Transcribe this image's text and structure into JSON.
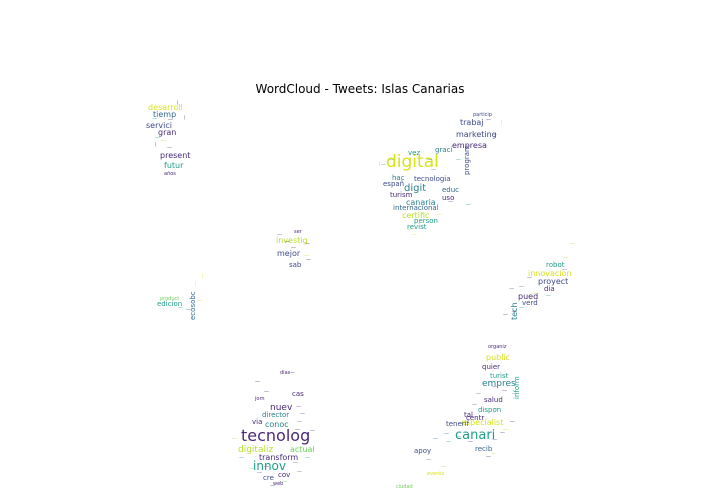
{
  "title": "WordCloud - Tweets: Islas Canarias",
  "palette": {
    "purple": "#482878",
    "indigo": "#3e4a89",
    "blue": "#31688e",
    "teal": "#26828e",
    "green": "#1f9e89",
    "lime": "#6ece58",
    "yellow": "#b5de2b",
    "gold": "#d8e219"
  },
  "words": [
    {
      "text": "desarroll",
      "c": "gold"
    },
    {
      "text": "tiemp",
      "c": "blue"
    },
    {
      "text": "servici",
      "c": "indigo"
    },
    {
      "text": "gran",
      "c": "purple"
    },
    {
      "text": "present",
      "c": "purple"
    },
    {
      "text": "futur",
      "c": "green"
    },
    {
      "text": "digital",
      "c": "gold"
    },
    {
      "text": "digit",
      "c": "teal"
    },
    {
      "text": "tecnologia",
      "c": "indigo"
    },
    {
      "text": "canaria",
      "c": "teal"
    },
    {
      "text": "internacional",
      "c": "blue"
    },
    {
      "text": "empresa",
      "c": "purple"
    },
    {
      "text": "marketing",
      "c": "indigo"
    },
    {
      "text": "trabaj",
      "c": "indigo"
    },
    {
      "text": "graci",
      "c": "teal"
    },
    {
      "text": "vez",
      "c": "green"
    },
    {
      "text": "españ",
      "c": "indigo"
    },
    {
      "text": "hac",
      "c": "teal"
    },
    {
      "text": "turism",
      "c": "purple"
    },
    {
      "text": "educ",
      "c": "blue"
    },
    {
      "text": "uso",
      "c": "purple"
    },
    {
      "text": "program",
      "c": "indigo"
    },
    {
      "text": "certific",
      "c": "yellow"
    },
    {
      "text": "person",
      "c": "green"
    },
    {
      "text": "revist",
      "c": "green"
    },
    {
      "text": "investig",
      "c": "yellow"
    },
    {
      "text": "mejor",
      "c": "indigo"
    },
    {
      "text": "sab",
      "c": "indigo"
    },
    {
      "text": "edicion",
      "c": "green"
    },
    {
      "text": "ecosobc",
      "c": "blue"
    },
    {
      "text": "robot",
      "c": "green"
    },
    {
      "text": "innovacion",
      "c": "gold"
    },
    {
      "text": "proyect",
      "c": "indigo"
    },
    {
      "text": "dia",
      "c": "purple"
    },
    {
      "text": "pued",
      "c": "purple"
    },
    {
      "text": "verd",
      "c": "indigo"
    },
    {
      "text": "tech",
      "c": "teal"
    },
    {
      "text": "public",
      "c": "gold"
    },
    {
      "text": "quier",
      "c": "purple"
    },
    {
      "text": "turist",
      "c": "green"
    },
    {
      "text": "empres",
      "c": "teal"
    },
    {
      "text": "inform",
      "c": "green"
    },
    {
      "text": "salud",
      "c": "purple"
    },
    {
      "text": "tal",
      "c": "purple"
    },
    {
      "text": "dispon",
      "c": "green"
    },
    {
      "text": "especialist",
      "c": "gold"
    },
    {
      "text": "canari",
      "c": "green"
    },
    {
      "text": "centr",
      "c": "purple"
    },
    {
      "text": "tenerif",
      "c": "indigo"
    },
    {
      "text": "recib",
      "c": "blue"
    },
    {
      "text": "apoy",
      "c": "indigo"
    },
    {
      "text": "nuev",
      "c": "purple"
    },
    {
      "text": "director",
      "c": "teal"
    },
    {
      "text": "cas",
      "c": "purple"
    },
    {
      "text": "via",
      "c": "purple"
    },
    {
      "text": "conoc",
      "c": "teal"
    },
    {
      "text": "tecnolog",
      "c": "purple"
    },
    {
      "text": "digitaliz",
      "c": "yellow"
    },
    {
      "text": "actual",
      "c": "lime"
    },
    {
      "text": "transform",
      "c": "purple"
    },
    {
      "text": "innov",
      "c": "green"
    },
    {
      "text": "cov",
      "c": "purple"
    },
    {
      "text": "cre",
      "c": "indigo"
    },
    {
      "text": "particip",
      "c": "indigo"
    },
    {
      "text": "organiz",
      "c": "purple"
    },
    {
      "text": "años",
      "c": "purple"
    },
    {
      "text": "jorn",
      "c": "purple"
    },
    {
      "text": "dias",
      "c": "purple"
    },
    {
      "text": "ser",
      "c": "purple"
    },
    {
      "text": "web",
      "c": "purple"
    },
    {
      "text": "product",
      "c": "lime"
    },
    {
      "text": "ciudad",
      "c": "lime"
    },
    {
      "text": "evento",
      "c": "gold"
    }
  ]
}
